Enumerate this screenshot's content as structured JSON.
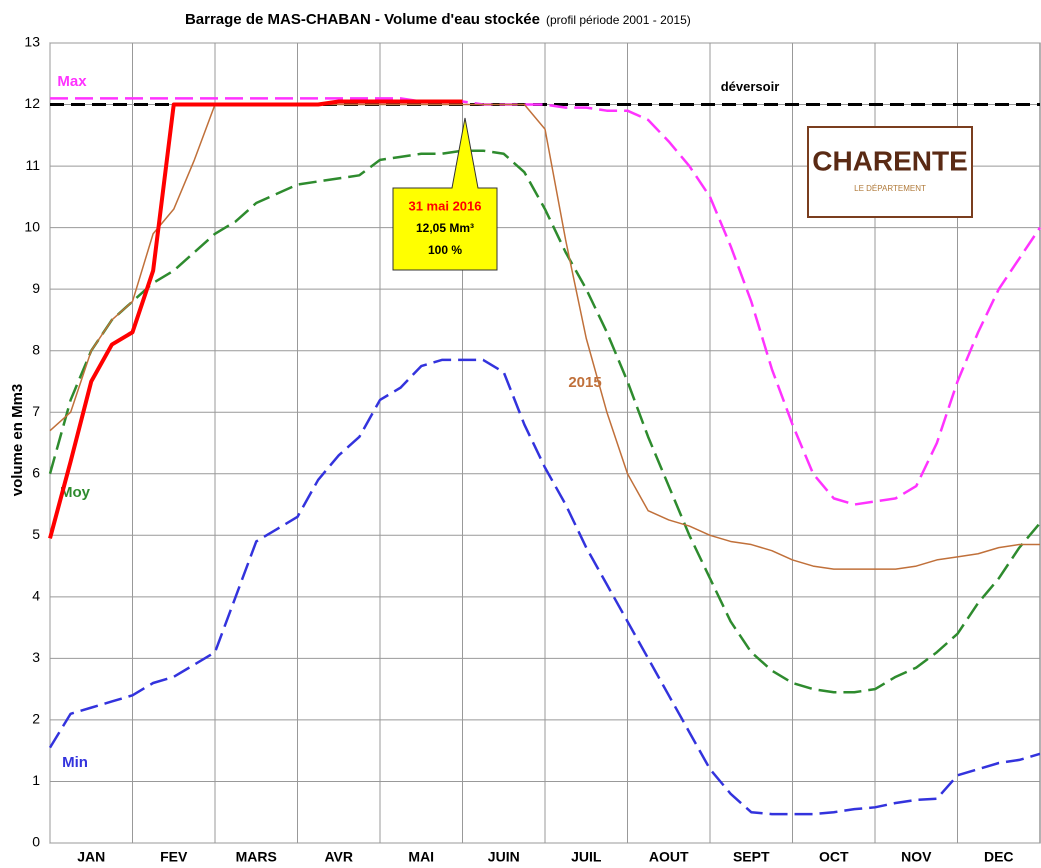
{
  "chart_data": {
    "type": "line",
    "title": "Barrage de MAS-CHABAN - Volume d'eau stockée",
    "subtitle": "(profil période 2001 - 2015)",
    "y_label": "volume en Mm3",
    "x": [
      0,
      0.25,
      0.5,
      0.75,
      1,
      1.25,
      1.5,
      1.75,
      2,
      2.25,
      2.5,
      2.75,
      3,
      3.25,
      3.5,
      3.75,
      4,
      4.25,
      4.5,
      4.75,
      5,
      5.25,
      5.5,
      5.75,
      6,
      6.25,
      6.5,
      6.75,
      7,
      7.25,
      7.5,
      7.75,
      8,
      8.25,
      8.5,
      8.75,
      9,
      9.25,
      9.5,
      9.75,
      10,
      10.25,
      10.5,
      10.75,
      11,
      11.25,
      11.5,
      11.75,
      12
    ],
    "xlim": [
      0,
      12
    ],
    "xticks": [
      {
        "value": 0.5,
        "label": "JAN"
      },
      {
        "value": 1.5,
        "label": "FEV"
      },
      {
        "value": 2.5,
        "label": "MARS"
      },
      {
        "value": 3.5,
        "label": "AVR"
      },
      {
        "value": 4.5,
        "label": "MAI"
      },
      {
        "value": 5.5,
        "label": "JUIN"
      },
      {
        "value": 6.5,
        "label": "JUIL"
      },
      {
        "value": 7.5,
        "label": "AOUT"
      },
      {
        "value": 8.5,
        "label": "SEPT"
      },
      {
        "value": 9.5,
        "label": "OCT"
      },
      {
        "value": 10.5,
        "label": "NOV"
      },
      {
        "value": 11.5,
        "label": "DEC"
      }
    ],
    "ylim": [
      0,
      13
    ],
    "yticks": [
      0,
      1,
      2,
      3,
      4,
      5,
      6,
      7,
      8,
      9,
      10,
      11,
      12,
      13
    ],
    "grid": true,
    "series": [
      {
        "name": "Max",
        "color": "#ff33ff",
        "dashed": true,
        "values": [
          12.1,
          12.1,
          12.1,
          12.1,
          12.1,
          12.1,
          12.1,
          12.1,
          12.1,
          12.1,
          12.1,
          12.1,
          12.1,
          12.1,
          12.1,
          12.1,
          12.1,
          12.1,
          12.05,
          12.05,
          12.05,
          12.0,
          12.0,
          12.0,
          12.0,
          11.95,
          11.95,
          11.9,
          11.9,
          11.75,
          11.4,
          11.0,
          10.5,
          9.7,
          8.8,
          7.7,
          6.8,
          6.0,
          5.6,
          5.5,
          5.55,
          5.6,
          5.8,
          6.5,
          7.5,
          8.3,
          9.0,
          9.5,
          10.0
        ]
      },
      {
        "name": "Moy",
        "color": "#2e8b2e",
        "dashed": true,
        "values": [
          6.0,
          7.2,
          8.0,
          8.5,
          8.8,
          9.1,
          9.3,
          9.6,
          9.9,
          10.1,
          10.4,
          10.55,
          10.7,
          10.75,
          10.8,
          10.85,
          11.1,
          11.15,
          11.2,
          11.2,
          11.25,
          11.25,
          11.2,
          10.9,
          10.3,
          9.6,
          9.0,
          8.3,
          7.5,
          6.6,
          5.8,
          5.0,
          4.3,
          3.6,
          3.1,
          2.8,
          2.6,
          2.5,
          2.45,
          2.45,
          2.5,
          2.7,
          2.85,
          3.1,
          3.4,
          3.9,
          4.3,
          4.8,
          5.2
        ]
      },
      {
        "name": "Min",
        "color": "#3333dd",
        "dashed": true,
        "values": [
          1.55,
          2.1,
          2.2,
          2.3,
          2.4,
          2.6,
          2.7,
          2.9,
          3.1,
          4.0,
          4.9,
          5.1,
          5.3,
          5.9,
          6.3,
          6.6,
          7.2,
          7.4,
          7.75,
          7.85,
          7.85,
          7.85,
          7.65,
          6.8,
          6.1,
          5.5,
          4.8,
          4.2,
          3.6,
          3.0,
          2.4,
          1.8,
          1.2,
          0.8,
          0.5,
          0.47,
          0.47,
          0.47,
          0.5,
          0.55,
          0.58,
          0.65,
          0.7,
          0.72,
          1.1,
          1.2,
          1.3,
          1.35,
          1.45
        ]
      },
      {
        "name": "2015",
        "color": "#c0703a",
        "dashed": false,
        "values": [
          6.7,
          7.0,
          8.0,
          8.5,
          8.8,
          9.9,
          10.3,
          11.1,
          12.0,
          12.0,
          12.0,
          12.0,
          12.0,
          12.0,
          12.0,
          12.0,
          12.0,
          12.0,
          12.0,
          12.0,
          12.0,
          12.0,
          12.0,
          12.0,
          11.6,
          9.8,
          8.2,
          7.0,
          6.0,
          5.4,
          5.25,
          5.15,
          5.0,
          4.9,
          4.85,
          4.75,
          4.6,
          4.5,
          4.45,
          4.45,
          4.45,
          4.45,
          4.5,
          4.6,
          4.65,
          4.7,
          4.8,
          4.85,
          4.85
        ]
      },
      {
        "color": "#ff0000",
        "dashed": false,
        "values": [
          4.95,
          6.2,
          7.5,
          8.1,
          8.3,
          9.3,
          12.0,
          12.0,
          12.0,
          12.0,
          12.0,
          12.0,
          12.0,
          12.0,
          12.05,
          12.05,
          12.05,
          12.05,
          12.05,
          12.05,
          12.05,
          null,
          null,
          null,
          null,
          null,
          null,
          null,
          null,
          null,
          null,
          null,
          null,
          null,
          null,
          null,
          null,
          null,
          null,
          null,
          null,
          null,
          null,
          null,
          null,
          null,
          null,
          null,
          null
        ]
      }
    ],
    "spillway": {
      "label": "déversoir",
      "value": 12
    },
    "callout": {
      "date": "31 mai 2016",
      "volume": "12,05 Mm³",
      "percent": "100 %"
    },
    "logo": {
      "name": "CHARENTE",
      "tagline": "LE DÉPARTEMENT"
    }
  }
}
